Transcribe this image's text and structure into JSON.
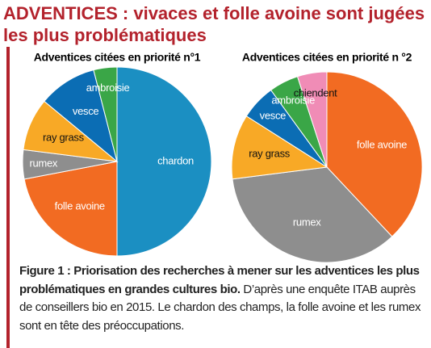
{
  "title_line1": "ADVENTICES : vivaces et folle avoine sont jugées",
  "title_line2": "les plus problématiques",
  "caption_bold": "Figure 1 : Priorisation des recherches à mener sur les adventices les plus problématiques en grandes cultures bio.",
  "caption_text": "D’après une enquête ITAB auprès de conseillers bio en 2015. Le chardon des champs, la folle avoine et les rumex sont en tête des préoccupations.",
  "chart_data": [
    {
      "type": "pie",
      "title": "Adventices citées en priorité n°1",
      "categories": [
        "chardon",
        "folle avoine",
        "rumex",
        "ray grass",
        "vesce",
        "ambroisie"
      ],
      "values": [
        50,
        22,
        5,
        9,
        10,
        4
      ],
      "colors": [
        "#1b8fc2",
        "#f26b22",
        "#8e8e8e",
        "#f8a926",
        "#0b6db4",
        "#3aa647"
      ]
    },
    {
      "type": "pie",
      "title": "Adventices citées en priorité n °2",
      "categories": [
        "folle avoine",
        "rumex",
        "ray grass",
        "vesce",
        "ambroisie",
        "chiendent"
      ],
      "values": [
        38,
        35,
        11,
        6,
        5,
        5
      ],
      "colors": [
        "#f26b22",
        "#8e8e8e",
        "#f8a926",
        "#0b6db4",
        "#3aa647",
        "#f08cb6"
      ]
    }
  ]
}
